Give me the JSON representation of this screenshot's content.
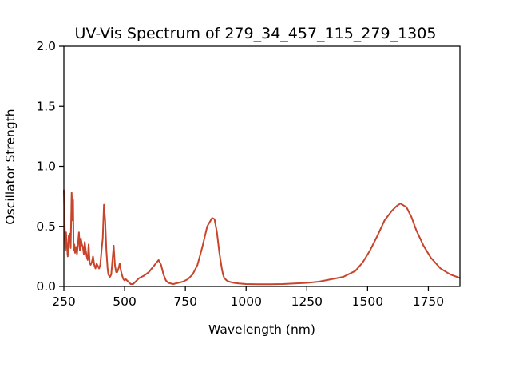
{
  "chart_data": {
    "type": "line",
    "title": "UV-Vis Spectrum of 279_34_457_115_279_1305",
    "xlabel": "Wavelength (nm)",
    "ylabel": "Oscillator Strength",
    "xlim": [
      250,
      1880
    ],
    "ylim": [
      0.0,
      2.0
    ],
    "x_ticks": [
      250,
      500,
      750,
      1000,
      1250,
      1500,
      1750
    ],
    "y_ticks": [
      0.0,
      0.5,
      1.0,
      1.5,
      2.0
    ],
    "x_tick_labels": [
      "250",
      "500",
      "750",
      "1000",
      "1250",
      "1500",
      "1750"
    ],
    "y_tick_labels": [
      "0.0",
      "0.5",
      "1.0",
      "1.5",
      "2.0"
    ],
    "grid": false,
    "legend": "none",
    "series": [
      {
        "color": "#c8442a",
        "x": [
          250,
          253,
          256,
          259,
          262,
          266,
          270,
          274,
          278,
          282,
          286,
          288,
          290,
          293,
          296,
          300,
          304,
          308,
          312,
          316,
          320,
          324,
          328,
          332,
          336,
          340,
          344,
          348,
          352,
          356,
          360,
          365,
          370,
          375,
          380,
          385,
          390,
          395,
          400,
          405,
          410,
          415,
          420,
          425,
          430,
          433,
          436,
          440,
          445,
          450,
          455,
          460,
          465,
          470,
          475,
          480,
          485,
          490,
          495,
          500,
          505,
          510,
          515,
          520,
          525,
          530,
          535,
          540,
          545,
          550,
          560,
          570,
          580,
          600,
          620,
          640,
          650,
          660,
          670,
          680,
          690,
          700,
          710,
          720,
          740,
          760,
          780,
          800,
          820,
          840,
          860,
          870,
          880,
          890,
          900,
          905,
          910,
          920,
          930,
          940,
          950,
          970,
          1000,
          1050,
          1100,
          1150,
          1200,
          1250,
          1300,
          1350,
          1400,
          1450,
          1480,
          1510,
          1540,
          1570,
          1600,
          1620,
          1635,
          1660,
          1680,
          1700,
          1730,
          1760,
          1800,
          1840,
          1880
        ],
        "y": [
          0.8,
          0.55,
          0.3,
          0.45,
          0.35,
          0.25,
          0.42,
          0.44,
          0.32,
          0.78,
          0.55,
          0.72,
          0.3,
          0.35,
          0.28,
          0.33,
          0.27,
          0.35,
          0.45,
          0.3,
          0.4,
          0.35,
          0.33,
          0.27,
          0.37,
          0.3,
          0.25,
          0.22,
          0.35,
          0.2,
          0.18,
          0.2,
          0.25,
          0.18,
          0.15,
          0.19,
          0.17,
          0.15,
          0.18,
          0.3,
          0.4,
          0.68,
          0.55,
          0.3,
          0.15,
          0.1,
          0.09,
          0.08,
          0.1,
          0.22,
          0.34,
          0.18,
          0.12,
          0.12,
          0.15,
          0.19,
          0.13,
          0.09,
          0.06,
          0.05,
          0.06,
          0.05,
          0.04,
          0.03,
          0.02,
          0.02,
          0.02,
          0.03,
          0.04,
          0.05,
          0.07,
          0.08,
          0.09,
          0.12,
          0.17,
          0.22,
          0.18,
          0.1,
          0.05,
          0.03,
          0.025,
          0.02,
          0.025,
          0.03,
          0.04,
          0.06,
          0.1,
          0.18,
          0.33,
          0.5,
          0.57,
          0.56,
          0.45,
          0.28,
          0.15,
          0.1,
          0.07,
          0.05,
          0.04,
          0.035,
          0.03,
          0.025,
          0.02,
          0.018,
          0.018,
          0.02,
          0.025,
          0.03,
          0.04,
          0.06,
          0.08,
          0.13,
          0.2,
          0.3,
          0.42,
          0.55,
          0.63,
          0.67,
          0.69,
          0.66,
          0.58,
          0.47,
          0.34,
          0.24,
          0.15,
          0.1,
          0.07
        ]
      }
    ]
  }
}
